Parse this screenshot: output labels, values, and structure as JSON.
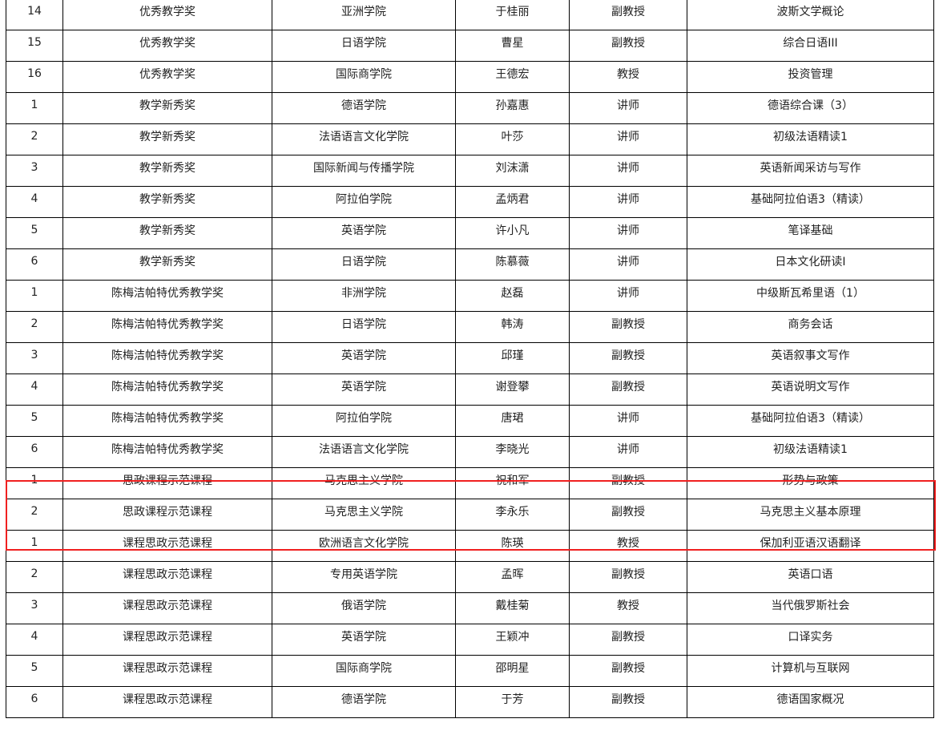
{
  "highlight_color": "#f02020",
  "rows": [
    [
      "14",
      "优秀教学奖",
      "亚洲学院",
      "于桂丽",
      "副教授",
      "波斯文学概论"
    ],
    [
      "15",
      "优秀教学奖",
      "日语学院",
      "曹星",
      "副教授",
      "综合日语III"
    ],
    [
      "16",
      "优秀教学奖",
      "国际商学院",
      "王德宏",
      "教授",
      "投资管理"
    ],
    [
      "1",
      "教学新秀奖",
      "德语学院",
      "孙嘉惠",
      "讲师",
      "德语综合课（3）"
    ],
    [
      "2",
      "教学新秀奖",
      "法语语言文化学院",
      "叶莎",
      "讲师",
      "初级法语精读1"
    ],
    [
      "3",
      "教学新秀奖",
      "国际新闻与传播学院",
      "刘沫潇",
      "讲师",
      "英语新闻采访与写作"
    ],
    [
      "4",
      "教学新秀奖",
      "阿拉伯学院",
      "孟炳君",
      "讲师",
      "基础阿拉伯语3（精读）"
    ],
    [
      "5",
      "教学新秀奖",
      "英语学院",
      "许小凡",
      "讲师",
      "笔译基础"
    ],
    [
      "6",
      "教学新秀奖",
      "日语学院",
      "陈慕薇",
      "讲师",
      "日本文化研读I"
    ],
    [
      "1",
      "陈梅洁帕特优秀教学奖",
      "非洲学院",
      "赵磊",
      "讲师",
      "中级斯瓦希里语（1）"
    ],
    [
      "2",
      "陈梅洁帕特优秀教学奖",
      "日语学院",
      "韩涛",
      "副教授",
      "商务会话"
    ],
    [
      "3",
      "陈梅洁帕特优秀教学奖",
      "英语学院",
      "邱瑾",
      "副教授",
      "英语叙事文写作"
    ],
    [
      "4",
      "陈梅洁帕特优秀教学奖",
      "英语学院",
      "谢登攀",
      "副教授",
      "英语说明文写作"
    ],
    [
      "5",
      "陈梅洁帕特优秀教学奖",
      "阿拉伯学院",
      "唐珺",
      "讲师",
      "基础阿拉伯语3（精读）"
    ],
    [
      "6",
      "陈梅洁帕特优秀教学奖",
      "法语语言文化学院",
      "李晓光",
      "讲师",
      "初级法语精读1"
    ],
    [
      "1",
      "思政课程示范课程",
      "马克思主义学院",
      "祝和军",
      "副教授",
      "形势与政策"
    ],
    [
      "2",
      "思政课程示范课程",
      "马克思主义学院",
      "李永乐",
      "副教授",
      "马克思主义基本原理"
    ],
    [
      "1",
      "课程思政示范课程",
      "欧洲语言文化学院",
      "陈瑛",
      "教授",
      "保加利亚语汉语翻译"
    ],
    [
      "2",
      "课程思政示范课程",
      "专用英语学院",
      "孟晖",
      "副教授",
      "英语口语"
    ],
    [
      "3",
      "课程思政示范课程",
      "俄语学院",
      "戴桂菊",
      "教授",
      "当代俄罗斯社会"
    ],
    [
      "4",
      "课程思政示范课程",
      "英语学院",
      "王颖冲",
      "副教授",
      "口译实务"
    ],
    [
      "5",
      "课程思政示范课程",
      "国际商学院",
      "邵明星",
      "副教授",
      "计算机与互联网"
    ],
    [
      "6",
      "课程思政示范课程",
      "德语学院",
      "于芳",
      "副教授",
      "德语国家概况"
    ]
  ]
}
